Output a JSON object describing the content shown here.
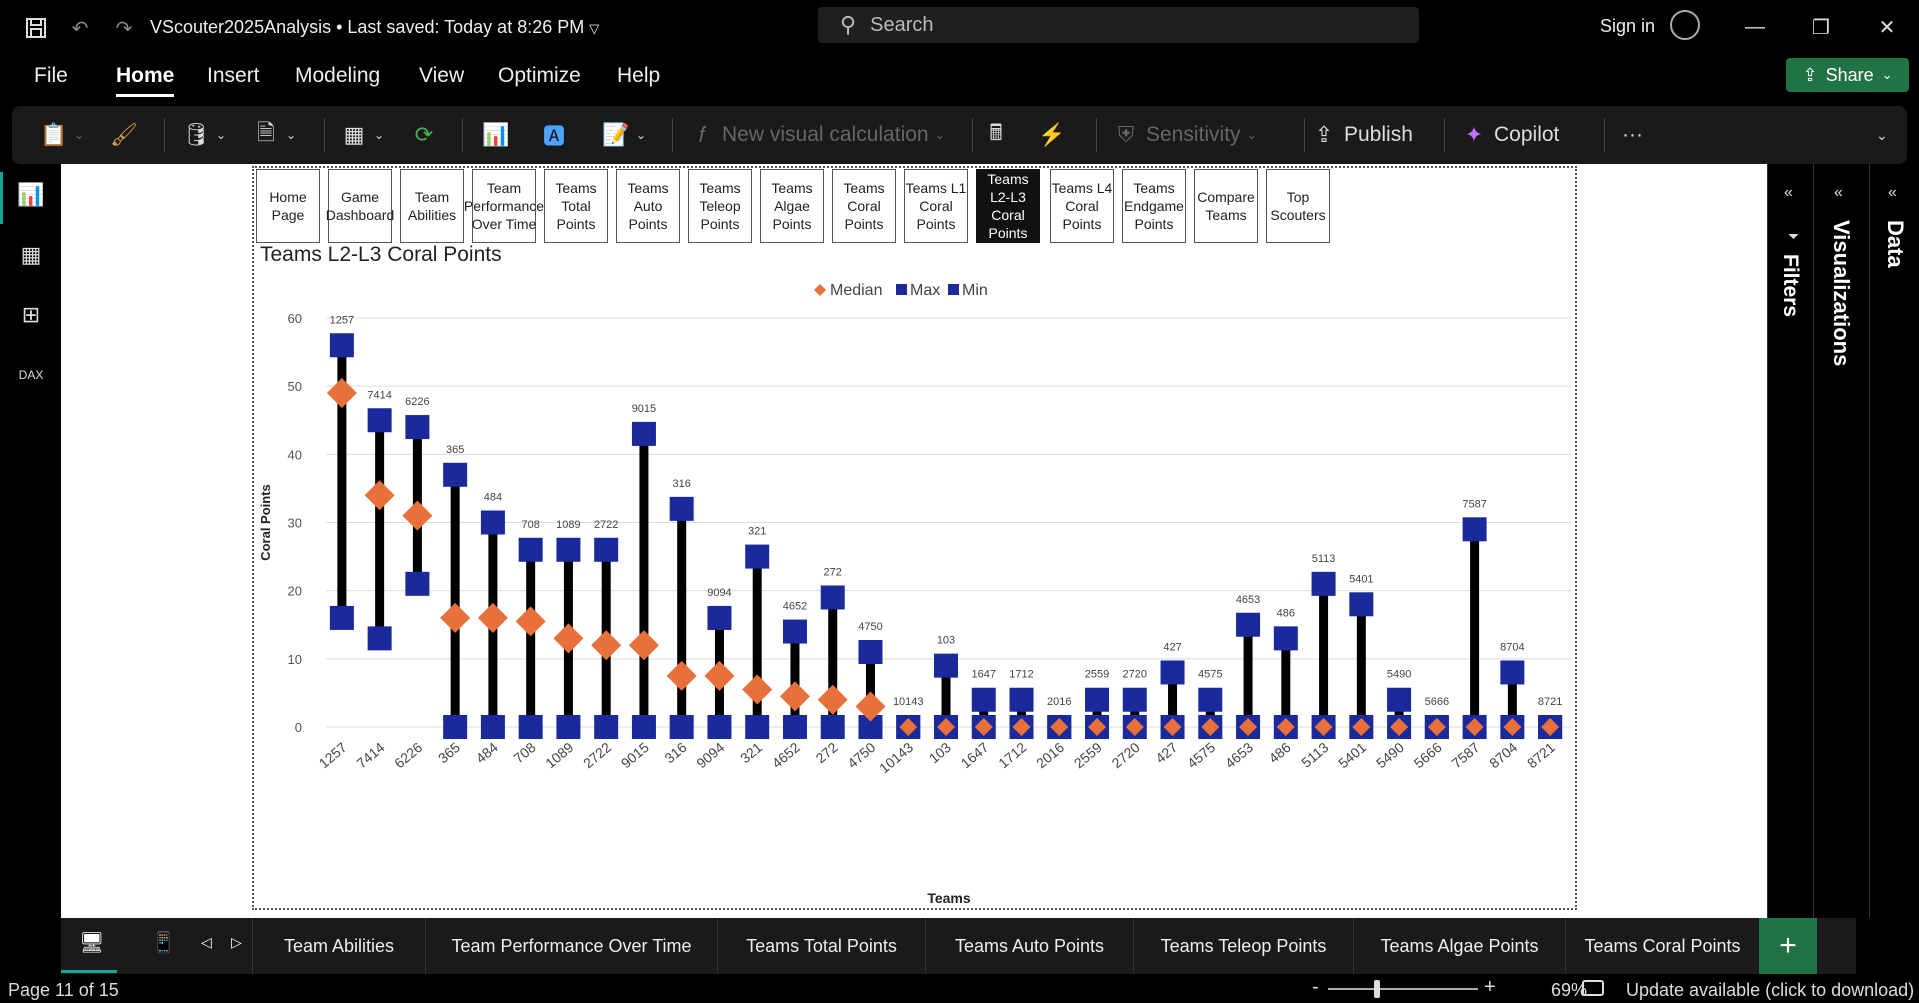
{
  "app": {
    "doc_title": "VScouter2025Analysis • Last saved: Today at 8:26 PM",
    "search_placeholder": "Search",
    "sign_in": "Sign in",
    "share": "Share"
  },
  "menu": [
    "File",
    "Home",
    "Insert",
    "Modeling",
    "View",
    "Optimize",
    "Help"
  ],
  "ribbon": {
    "new_visual_calc": "New visual calculation",
    "sensitivity": "Sensitivity",
    "publish": "Publish",
    "copilot": "Copilot",
    "more": "···"
  },
  "nav_buttons": [
    "Home Page",
    "Game Dashboard",
    "Team Abilities",
    "Team Performance Over Time",
    "Teams Total Points",
    "Teams Auto Points",
    "Teams Teleop Points",
    "Teams Algae Points",
    "Teams Coral Points",
    "Teams L1 Coral Points",
    "Teams L2-L3 Coral Points",
    "Teams L4 Coral Points",
    "Teams Endgame Points",
    "Compare Teams",
    "Top Scouters"
  ],
  "selected_nav": 10,
  "panels": {
    "filters": "Filters",
    "visualizations": "Visualizations",
    "data": "Data"
  },
  "page_tabs": [
    "Team Abilities",
    "Team Performance Over Time",
    "Teams Total Points",
    "Teams Auto Points",
    "Teams Teleop Points",
    "Teams Algae Points",
    "Teams Coral Points"
  ],
  "status": {
    "page": "Page 11 of 15",
    "zoom": "69%",
    "update": "Update available (click to download)"
  },
  "colors": {
    "median": "#e8703a",
    "max": "#1a2a9c",
    "min": "#1a2a9c",
    "stem": "#000000",
    "accent": "#217346"
  },
  "chart_data": {
    "type": "scatter",
    "title": "Teams L2-L3 Coral Points",
    "xlabel": "Teams",
    "ylabel": "Coral Points",
    "ylim": [
      0,
      60
    ],
    "yticks": [
      0,
      10,
      20,
      30,
      40,
      50,
      60
    ],
    "legend": [
      "Median",
      "Max",
      "Min"
    ],
    "legend_position": "top-center",
    "grid": true,
    "categories": [
      "1257",
      "7414",
      "6226",
      "365",
      "484",
      "708",
      "1089",
      "2722",
      "9015",
      "316",
      "9094",
      "321",
      "4652",
      "272",
      "4750",
      "10143",
      "103",
      "1647",
      "1712",
      "2016",
      "2559",
      "2720",
      "427",
      "4575",
      "4653",
      "486",
      "5113",
      "5401",
      "5490",
      "5666",
      "7587",
      "8704",
      "8721"
    ],
    "series": [
      {
        "name": "Max",
        "values": [
          56,
          45,
          44,
          37,
          30,
          26,
          26,
          26,
          43,
          32,
          16,
          25,
          14,
          19,
          11,
          0,
          9,
          4,
          4,
          0,
          4,
          4,
          8,
          4,
          15,
          13,
          21,
          18,
          4,
          0,
          29,
          8,
          0
        ]
      },
      {
        "name": "Min",
        "values": [
          16,
          13,
          21,
          0,
          0,
          0,
          0,
          0,
          0,
          0,
          0,
          0,
          0,
          0,
          0,
          0,
          0,
          0,
          0,
          0,
          0,
          0,
          0,
          0,
          0,
          0,
          0,
          0,
          0,
          0,
          0,
          0,
          0
        ]
      },
      {
        "name": "Median",
        "values": [
          49,
          34,
          31,
          16,
          16,
          15.5,
          13,
          12,
          12,
          7.5,
          7.5,
          5.5,
          4.5,
          4,
          3,
          0,
          0,
          0,
          0,
          0,
          0,
          0,
          0,
          0,
          0,
          0,
          0,
          0,
          0,
          0,
          0,
          0,
          0
        ]
      }
    ]
  }
}
